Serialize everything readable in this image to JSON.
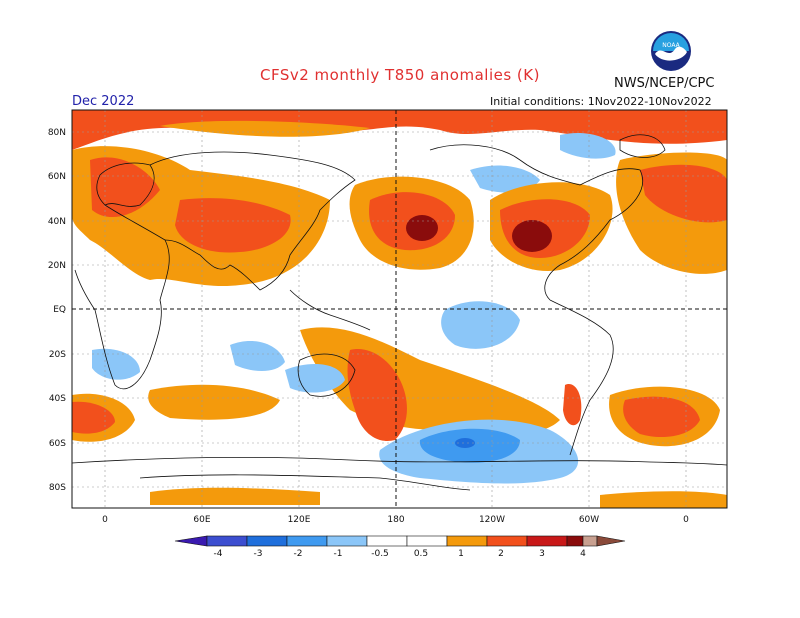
{
  "header": {
    "title": "CFSv2 monthly T850 anomalies (K)",
    "month": "Dec 2022",
    "org": "NWS/NCEP/CPC",
    "initial_conditions": "Initial conditions: 1Nov2022-10Nov2022"
  },
  "logo": {
    "text": "NOAA",
    "colors": {
      "ring": "#1a2a80",
      "sky": "#27a0e0",
      "bird": "#ffffff"
    }
  },
  "map": {
    "y_ticks": [
      "80N",
      "60N",
      "40N",
      "20N",
      "EQ",
      "20S",
      "40S",
      "60S",
      "80S"
    ],
    "x_ticks": [
      "0",
      "60E",
      "120E",
      "180",
      "120W",
      "60W",
      "0"
    ]
  },
  "colorbar": {
    "labels": [
      "-4",
      "-3",
      "-2",
      "-1",
      "-0.5",
      "0.5",
      "1",
      "2",
      "3",
      "4"
    ],
    "colors": [
      "#3a1ab0",
      "#3c4ed0",
      "#1f6fdc",
      "#3f9af0",
      "#8bc6f8",
      "#ffffff",
      "#f49a0c",
      "#f2501c",
      "#c81818",
      "#8a0c0c",
      "#c8a090",
      "#8a4a3a"
    ]
  },
  "palette": {
    "cold2": "#3f9af0",
    "cold1": "#8bc6f8",
    "cold3": "#1f6fdc",
    "warm1": "#f49a0c",
    "warm2": "#f2501c",
    "warm3": "#c81818",
    "warm4": "#8a0c0c"
  }
}
